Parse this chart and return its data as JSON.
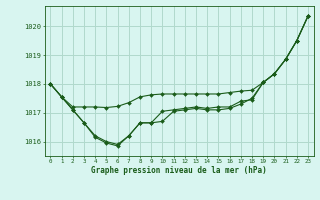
{
  "title": "Graphe pression niveau de la mer (hPa)",
  "background_color": "#d8f5f0",
  "grid_color": "#b0d9cc",
  "line_color": "#1a5c1a",
  "marker_color": "#1a5c1a",
  "xlim": [
    -0.5,
    23.5
  ],
  "ylim": [
    1015.5,
    1020.7
  ],
  "yticks": [
    1016,
    1017,
    1018,
    1019,
    1020
  ],
  "xticks": [
    0,
    1,
    2,
    3,
    4,
    5,
    6,
    7,
    8,
    9,
    10,
    11,
    12,
    13,
    14,
    15,
    16,
    17,
    18,
    19,
    20,
    21,
    22,
    23
  ],
  "series": [
    [
      1018.0,
      1017.55,
      1017.1,
      1016.65,
      1016.2,
      1016.0,
      1015.9,
      1016.2,
      1016.65,
      1016.65,
      1016.7,
      1017.05,
      1017.1,
      1017.15,
      1017.1,
      1017.1,
      1017.15,
      1017.3,
      1017.5,
      1018.05,
      1018.35,
      1018.85,
      1019.5,
      1020.35
    ],
    [
      1018.0,
      1017.55,
      1017.2,
      1017.2,
      1017.2,
      1017.18,
      1017.22,
      1017.35,
      1017.55,
      1017.62,
      1017.65,
      1017.65,
      1017.65,
      1017.65,
      1017.65,
      1017.65,
      1017.7,
      1017.75,
      1017.78,
      1018.05,
      1018.35,
      1018.85,
      1019.5,
      1020.35
    ],
    [
      1018.0,
      1017.55,
      1017.1,
      1016.65,
      1016.15,
      1015.95,
      1015.85,
      1016.2,
      1016.65,
      1016.65,
      1017.05,
      1017.1,
      1017.15,
      1017.2,
      1017.15,
      1017.2,
      1017.2,
      1017.4,
      1017.45,
      1018.05,
      1018.35,
      1018.85,
      1019.5,
      1020.35
    ]
  ]
}
